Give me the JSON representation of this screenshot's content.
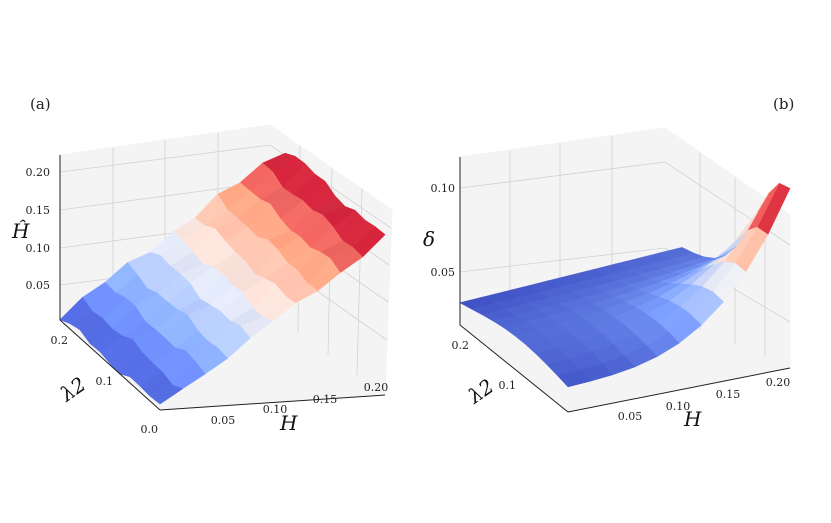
{
  "chart_data": [
    {
      "panel_label": "(a)",
      "type": "surface3d",
      "xlabel": "H",
      "ylabel": "λ2",
      "zlabel": "Ĥ",
      "xlim": [
        0.0,
        0.2
      ],
      "ylim": [
        0.0,
        0.25
      ],
      "zlim": [
        0.0,
        0.22
      ],
      "xticks": [
        "0.05",
        "0.10",
        "0.15",
        "0.20"
      ],
      "yticks": [
        "0.0",
        "0.1",
        "0.2"
      ],
      "zticks": [
        "0.05",
        "0.10",
        "0.15",
        "0.20"
      ],
      "x": [
        0.0,
        0.02,
        0.04,
        0.06,
        0.08,
        0.1,
        0.12,
        0.14,
        0.16,
        0.18,
        0.2
      ],
      "y": [
        0.0,
        0.025,
        0.05,
        0.075,
        0.1,
        0.125,
        0.15,
        0.175,
        0.2,
        0.225,
        0.25
      ],
      "surface": "z ≈ H with small ripples (nearly independent of λ2); peak ≈ 0.21 at H = 0.20",
      "colormap": "coolwarm"
    },
    {
      "panel_label": "(b)",
      "type": "surface3d",
      "xlabel": "H",
      "ylabel": "λ2",
      "zlabel": "δ",
      "xlim": [
        0.0,
        0.2
      ],
      "ylim": [
        0.0,
        0.25
      ],
      "zlim": [
        0.0,
        0.12
      ],
      "xticks": [
        "0.05",
        "0.10",
        "0.15",
        "0.20"
      ],
      "yticks": [
        "0.1",
        "0.2"
      ],
      "zticks": [
        "0.05",
        "0.10"
      ],
      "x": [
        0.0,
        0.02,
        0.04,
        0.06,
        0.08,
        0.1,
        0.12,
        0.14,
        0.16,
        0.18,
        0.2
      ],
      "y": [
        0.0,
        0.025,
        0.05,
        0.075,
        0.1,
        0.125,
        0.15,
        0.175,
        0.2,
        0.225,
        0.25
      ],
      "surface": "δ ≈ 0.02 at low H, rising sharply near small λ2 and large H to a peak ≈ 0.12 at H = 0.20, λ2 = 0",
      "colormap": "coolwarm"
    }
  ]
}
